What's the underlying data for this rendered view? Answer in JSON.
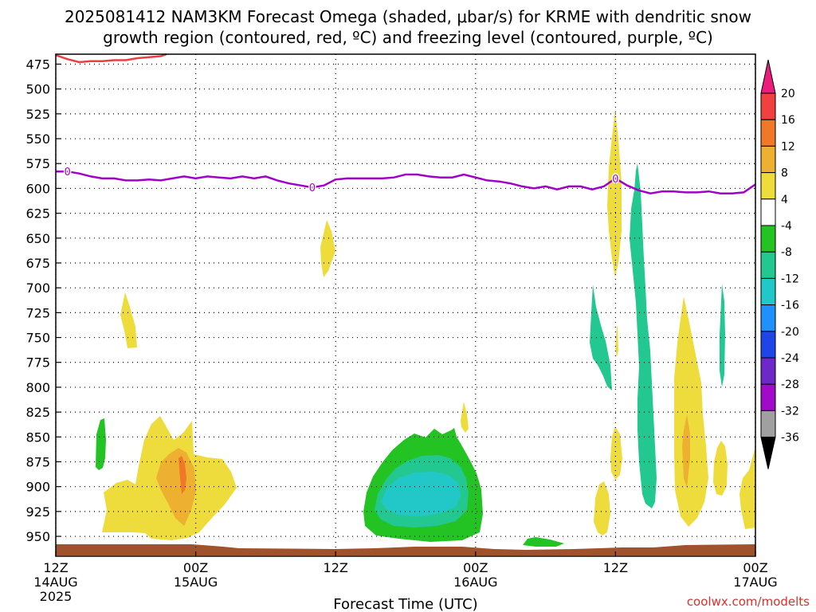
{
  "title_lines": [
    "2025081412 NAM3KM Forecast Omega (shaded, μbar/s) for KRME with dendritic snow",
    "growth region (contoured, red, ºC) and freezing level (contoured, purple, ºC)"
  ],
  "xlabel": "Forecast Time (UTC)",
  "credit": "coolwx.com/modelts",
  "chart_data": {
    "type": "heatmap",
    "title": "2025081412 NAM3KM Forecast Omega (shaded, μbar/s) for KRME with dendritic snow growth region (contoured, red, ºC) and freezing level (contoured, purple, ºC)",
    "xlabel": "Forecast Time (UTC)",
    "ylabel": "",
    "x_range_hours": [
      0,
      60
    ],
    "y_range_hPa": [
      465,
      970
    ],
    "y_ticks": [
      475,
      500,
      525,
      550,
      575,
      600,
      625,
      650,
      675,
      700,
      725,
      750,
      775,
      800,
      825,
      850,
      875,
      900,
      925,
      950
    ],
    "x_ticks": [
      {
        "hour": 0,
        "lines": [
          "12Z",
          "14AUG",
          "2025"
        ]
      },
      {
        "hour": 12,
        "lines": [
          "00Z",
          "15AUG"
        ]
      },
      {
        "hour": 24,
        "lines": [
          "12Z"
        ]
      },
      {
        "hour": 36,
        "lines": [
          "00Z",
          "16AUG"
        ]
      },
      {
        "hour": 48,
        "lines": [
          "12Z"
        ]
      },
      {
        "hour": 60,
        "lines": [
          "00Z",
          "17AUG"
        ]
      }
    ],
    "grid": true,
    "colorbar": {
      "labels": [
        "20",
        "16",
        "12",
        "8",
        "4",
        "-4",
        "-8",
        "-12",
        "-16",
        "-20",
        "-24",
        "-28",
        "-32",
        "-36"
      ],
      "colors": [
        "#ec1c7c",
        "#f04040",
        "#f07828",
        "#eeb030",
        "#eedc3c",
        "#ffffff",
        "#22c322",
        "#22c890",
        "#22c8c8",
        "#1e90ff",
        "#1e46e6",
        "#6e28c8",
        "#a00ac8",
        "#a0a0a0",
        "#000000"
      ]
    },
    "omega_regions": [
      {
        "name": "ascent-1400z-0030z",
        "levels": [
          4,
          8,
          12
        ]
      },
      {
        "name": "ascent-1600z-1620z",
        "levels": [
          4
        ]
      },
      {
        "name": "ascent-1500z-0645z",
        "levels": [
          4
        ]
      },
      {
        "name": "descent-1600z-0330z",
        "levels": [
          -4,
          -8,
          -12
        ]
      },
      {
        "name": "ascent-1700z-1200z",
        "levels": [
          4
        ]
      },
      {
        "name": "descent-1700z-1300z",
        "levels": [
          -4,
          -8
        ]
      },
      {
        "name": "ascent-1700z-1900z",
        "levels": [
          4,
          8,
          12
        ]
      },
      {
        "name": "descent-1400z-1500z",
        "levels": [
          -4
        ]
      }
    ],
    "freezing_level": {
      "label": "0",
      "color": "#a000c8",
      "x_hours": [
        0,
        1,
        2,
        3,
        4,
        5,
        6,
        7,
        8,
        9,
        10,
        11,
        12,
        13,
        14,
        15,
        16,
        17,
        18,
        19,
        20,
        21,
        22,
        23,
        24,
        25,
        26,
        27,
        28,
        29,
        30,
        31,
        32,
        33,
        34,
        35,
        36,
        37,
        38,
        39,
        40,
        41,
        42,
        43,
        44,
        45,
        46,
        47,
        48,
        49,
        50,
        51,
        52,
        53,
        54,
        55,
        56,
        57,
        58,
        59,
        60
      ],
      "pressure_hPa": [
        583,
        583,
        585,
        588,
        590,
        590,
        592,
        592,
        591,
        592,
        590,
        588,
        590,
        588,
        589,
        590,
        588,
        590,
        588,
        592,
        595,
        597,
        599,
        597,
        591,
        590,
        590,
        590,
        590,
        589,
        586,
        586,
        588,
        589,
        589,
        586,
        589,
        592,
        593,
        595,
        598,
        600,
        598,
        601,
        598,
        598,
        601,
        598,
        590,
        597,
        602,
        605,
        603,
        603,
        604,
        604,
        603,
        605,
        605,
        604,
        596
      ]
    },
    "dendritic_growth_zone": {
      "color": "#e84040",
      "x_hours": [
        0,
        1,
        2,
        3,
        4,
        5,
        6,
        7,
        8,
        9,
        9.5
      ],
      "pressure_hPa": [
        466,
        470,
        473,
        472,
        472,
        471,
        471,
        469,
        468,
        467,
        465
      ]
    }
  }
}
